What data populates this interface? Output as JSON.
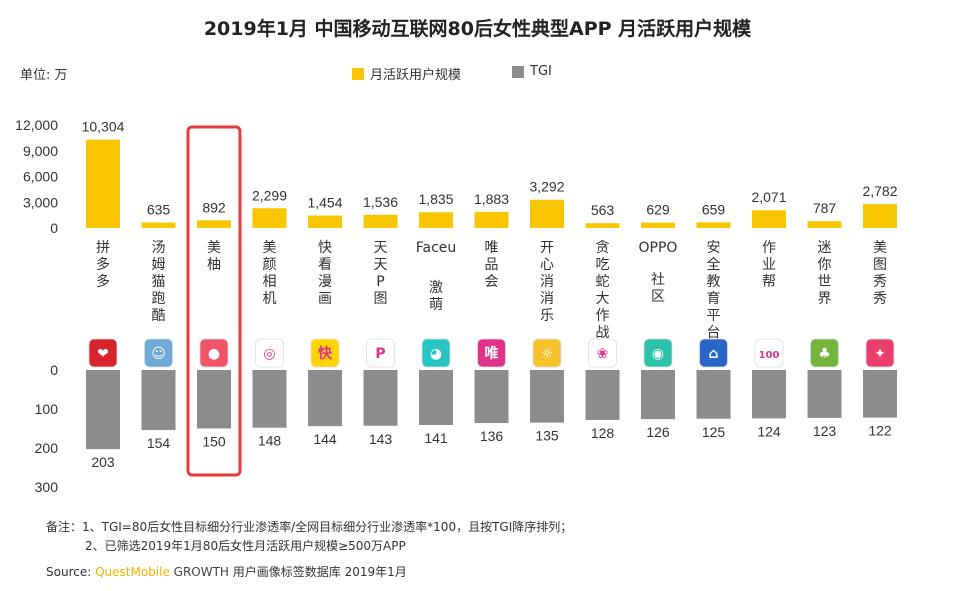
{
  "title": "2019年1月 中国移动互联网80后女性典型APP 月活跃用户规模",
  "unit_label": "单位: 万",
  "legend": [
    {
      "label": "月活跃用户规模",
      "color": "#f7c600"
    },
    {
      "label": "TGI",
      "color": "#8c8c8c"
    }
  ],
  "highlight_color": "#e63a3a",
  "notes": {
    "line1": "备注：1、TGI=80后女性目标细分行业渗透率/全网目标细分行业渗透率*100，且按TGI降序排列；",
    "line2": "2、已筛选2019年1月80后女性月活跃用户规模≥500万APP"
  },
  "source": {
    "prefix": "Source: ",
    "brand": "QuestMobile",
    "brand2": " GROWTH",
    "rest": " 用户画像标签数据库 2019年1月"
  },
  "chart_data": {
    "type": "bar",
    "categories": [
      "拼多多",
      "汤姆猫跑酷",
      "美柚",
      "美颜相机",
      "快看漫画",
      "天天P图",
      "Faceu激萌",
      "唯品会",
      "开心消消乐",
      "贪吃蛇大作战",
      "OPPO社区",
      "安全教育平台",
      "作业帮",
      "迷你世界",
      "美图秀秀"
    ],
    "series": [
      {
        "name": "月活跃用户规模",
        "values": [
          10304,
          635,
          892,
          2299,
          1454,
          1536,
          1835,
          1883,
          3292,
          563,
          629,
          659,
          2071,
          787,
          2782
        ],
        "value_labels": [
          "10,304",
          "635",
          "892",
          "2,299",
          "1,454",
          "1,536",
          "1,835",
          "1,883",
          "3,292",
          "563",
          "629",
          "659",
          "2,071",
          "787",
          "2,782"
        ]
      },
      {
        "name": "TGI",
        "values": [
          203,
          154,
          150,
          148,
          144,
          143,
          141,
          136,
          135,
          128,
          126,
          125,
          124,
          123,
          122
        ]
      }
    ],
    "top_axis": {
      "ticks": [
        0,
        3000,
        6000,
        9000,
        12000
      ],
      "tick_labels": [
        "0",
        "3,000",
        "6,000",
        "9,000",
        "12,000"
      ],
      "ylim": [
        0,
        12000
      ]
    },
    "bottom_axis": {
      "ticks": [
        0,
        100,
        200,
        300
      ],
      "tick_labels": [
        "0",
        "100",
        "200",
        "300"
      ],
      "ylim": [
        0,
        300
      ]
    },
    "highlighted_category": "美柚",
    "grid": false,
    "legend_position": "top-center",
    "app_icons": [
      "pinduoduo-icon",
      "talking-tom-icon",
      "meiyou-icon",
      "beauty-cam-icon",
      "kuaikan-icon",
      "tiantian-ptu-icon",
      "faceu-icon",
      "vipshop-icon",
      "happy-elimination-icon",
      "snake-icon",
      "oppo-community-icon",
      "safety-edu-icon",
      "zuoyebang-icon",
      "mini-world-icon",
      "meitu-icon"
    ],
    "icon_colors": [
      "#d9232a",
      "#6fa9d6",
      "#f2546a",
      "#ffffff",
      "#ffd400",
      "#ffffff",
      "#27c4c4",
      "#e0328a",
      "#f5c22c",
      "#ffffff",
      "#2ac3a8",
      "#2a66c8",
      "#ffffff",
      "#74b53c",
      "#ea3e6e"
    ],
    "icon_glyphs": [
      "❤",
      "☺",
      "●",
      "◎",
      "快",
      "P",
      "◕",
      "唯",
      "☼",
      "❀",
      "◉",
      "⌂",
      "100",
      "♣",
      "✦"
    ]
  }
}
